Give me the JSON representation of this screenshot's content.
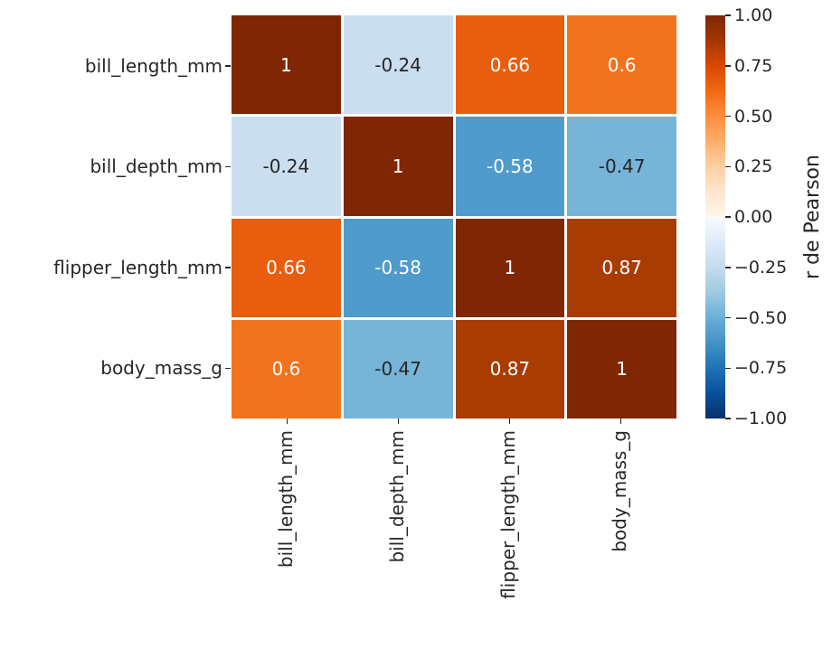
{
  "chart_data": {
    "type": "heatmap",
    "title": "",
    "description": "Correlation matrix heatmap of penguin measurements",
    "variables": [
      "bill_length_mm",
      "bill_depth_mm",
      "flipper_length_mm",
      "body_mass_g"
    ],
    "x_tick_labels": [
      "bill_length_mm",
      "bill_depth_mm",
      "flipper_length_mm",
      "body_mass_g"
    ],
    "y_tick_labels": [
      "bill_length_mm",
      "bill_depth_mm",
      "flipper_length_mm",
      "body_mass_g"
    ],
    "matrix": [
      [
        1,
        -0.24,
        0.66,
        0.6
      ],
      [
        -0.24,
        1,
        -0.58,
        -0.47
      ],
      [
        0.66,
        -0.58,
        1,
        0.87
      ],
      [
        0.6,
        -0.47,
        0.87,
        1
      ]
    ],
    "cells": [
      [
        {
          "label": "1",
          "bg": "#7f2704",
          "fg": "#ffffff"
        },
        {
          "label": "-0.24",
          "bg": "#cadef0",
          "fg": "#262626"
        },
        {
          "label": "0.66",
          "bg": "#e95d0e",
          "fg": "#ffffff"
        },
        {
          "label": "0.6",
          "bg": "#f1731d",
          "fg": "#ffffff"
        }
      ],
      [
        {
          "label": "-0.24",
          "bg": "#cadef0",
          "fg": "#262626"
        },
        {
          "label": "1",
          "bg": "#7f2704",
          "fg": "#ffffff"
        },
        {
          "label": "-0.58",
          "bg": "#4f9bcb",
          "fg": "#ffffff"
        },
        {
          "label": "-0.47",
          "bg": "#76b4d8",
          "fg": "#262626"
        }
      ],
      [
        {
          "label": "0.66",
          "bg": "#e95d0e",
          "fg": "#ffffff"
        },
        {
          "label": "-0.58",
          "bg": "#4f9bcb",
          "fg": "#ffffff"
        },
        {
          "label": "1",
          "bg": "#7f2704",
          "fg": "#ffffff"
        },
        {
          "label": "0.87",
          "bg": "#a83c03",
          "fg": "#ffffff"
        }
      ],
      [
        {
          "label": "0.6",
          "bg": "#f1731d",
          "fg": "#ffffff"
        },
        {
          "label": "-0.47",
          "bg": "#76b4d8",
          "fg": "#262626"
        },
        {
          "label": "0.87",
          "bg": "#a83c03",
          "fg": "#ffffff"
        },
        {
          "label": "1",
          "bg": "#7f2704",
          "fg": "#ffffff"
        }
      ]
    ],
    "colorbar": {
      "label": "r de Pearson",
      "range": [
        -1,
        1
      ],
      "ticks": [
        "1.00",
        "0.75",
        "0.50",
        "0.25",
        "0.00",
        "−0.25",
        "−0.50",
        "−0.75",
        "−1.00"
      ],
      "gradient_stops": [
        {
          "color": "#7f2704",
          "pos": "0%"
        },
        {
          "color": "#a63603",
          "pos": "6.25%"
        },
        {
          "color": "#d94801",
          "pos": "12.5%"
        },
        {
          "color": "#f16913",
          "pos": "18.75%"
        },
        {
          "color": "#fd8d3c",
          "pos": "25%"
        },
        {
          "color": "#fdae6b",
          "pos": "31.25%"
        },
        {
          "color": "#fdd0a2",
          "pos": "37.5%"
        },
        {
          "color": "#fee6ce",
          "pos": "43.75%"
        },
        {
          "color": "#fff5eb",
          "pos": "50%"
        },
        {
          "color": "#f7fbff",
          "pos": "50%"
        },
        {
          "color": "#deebf7",
          "pos": "56.25%"
        },
        {
          "color": "#c6dbef",
          "pos": "62.5%"
        },
        {
          "color": "#9ecae1",
          "pos": "68.75%"
        },
        {
          "color": "#6baed6",
          "pos": "75%"
        },
        {
          "color": "#4292c6",
          "pos": "81.25%"
        },
        {
          "color": "#2171b5",
          "pos": "87.5%"
        },
        {
          "color": "#08519c",
          "pos": "93.75%"
        },
        {
          "color": "#08306b",
          "pos": "100%"
        }
      ]
    },
    "layout_hints": {
      "grid": "off",
      "colorbar_position": "right",
      "x_tick_rotation": 90,
      "background": "#ffffff"
    }
  }
}
